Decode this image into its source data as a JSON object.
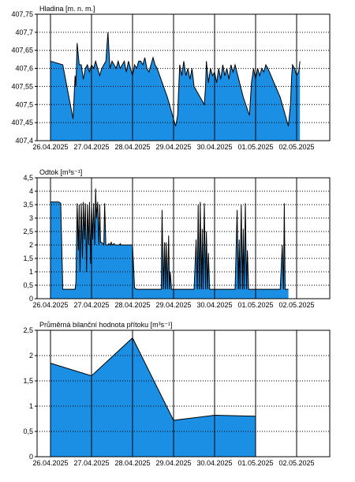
{
  "chart_data": [
    {
      "type": "area",
      "title": "Hladina [m. n. m.]",
      "x_ticks": [
        "26.04.2025",
        "27.04.2025",
        "28.04.2025",
        "29.04.2025",
        "30.04.2025",
        "01.05.2025",
        "02.05.2025"
      ],
      "y_ticks": [
        "407,4",
        "407,45",
        "407,5",
        "407,55",
        "407,6",
        "407,65",
        "407,7",
        "407,75"
      ],
      "ylim": [
        407.4,
        407.75
      ],
      "xlim": [
        0,
        7.1
      ],
      "grid": true,
      "fill_color": "#1a8fe3",
      "series": [
        {
          "x": [
            0.0,
            0.3,
            0.55,
            0.6,
            0.62,
            0.65,
            0.7,
            0.75,
            0.8,
            0.85,
            0.9,
            0.95,
            1.0,
            1.05,
            1.1,
            1.15,
            1.2,
            1.25,
            1.3,
            1.35,
            1.4,
            1.45,
            1.5,
            1.55,
            1.6,
            1.65,
            1.7,
            1.75,
            1.8,
            1.85,
            1.9,
            1.95,
            2.0,
            2.05,
            2.1,
            2.15,
            2.2,
            2.25,
            2.3,
            2.35,
            2.4,
            2.45,
            2.5,
            2.55,
            2.6,
            2.85,
            3.05,
            3.1,
            3.12,
            3.15,
            3.2,
            3.25,
            3.3,
            3.35,
            3.4,
            3.45,
            3.5,
            3.6,
            3.7,
            3.75,
            3.78,
            3.8,
            3.85,
            3.9,
            3.95,
            4.0,
            4.05,
            4.1,
            4.15,
            4.2,
            4.25,
            4.3,
            4.35,
            4.4,
            4.45,
            4.5,
            4.7,
            4.85,
            4.9,
            4.95,
            5.0,
            5.05,
            5.1,
            5.15,
            5.2,
            5.25,
            5.3,
            5.6,
            5.8,
            5.85,
            5.88,
            5.9,
            5.95,
            6.0,
            6.05,
            6.08
          ],
          "y": [
            407.62,
            407.61,
            407.46,
            407.58,
            407.55,
            407.67,
            407.61,
            407.61,
            407.57,
            407.6,
            407.61,
            407.59,
            407.61,
            407.6,
            407.62,
            407.6,
            407.58,
            407.6,
            407.61,
            407.62,
            407.7,
            407.6,
            407.62,
            407.61,
            407.6,
            407.62,
            407.6,
            407.61,
            407.62,
            407.59,
            407.62,
            407.6,
            407.58,
            407.61,
            407.6,
            407.62,
            407.62,
            407.61,
            407.63,
            407.6,
            407.59,
            407.61,
            407.63,
            407.61,
            407.6,
            407.52,
            407.44,
            407.47,
            407.53,
            407.61,
            407.58,
            407.62,
            407.58,
            407.6,
            407.57,
            407.6,
            407.55,
            407.53,
            407.51,
            407.5,
            407.55,
            407.62,
            407.56,
            407.6,
            407.58,
            407.59,
            407.56,
            407.6,
            407.57,
            407.61,
            407.58,
            407.6,
            407.57,
            407.61,
            407.59,
            407.61,
            407.52,
            407.47,
            407.56,
            407.6,
            407.57,
            407.6,
            407.58,
            407.6,
            407.59,
            407.61,
            407.6,
            407.52,
            407.44,
            407.5,
            407.58,
            407.61,
            407.6,
            407.58,
            407.59,
            407.62
          ]
        }
      ]
    },
    {
      "type": "area",
      "title": "Odtok [m³s⁻¹]",
      "x_ticks": [
        "26.04.2025",
        "27.04.2025",
        "28.04.2025",
        "29.04.2025",
        "30.04.2025",
        "01.05.2025",
        "02.05.2025"
      ],
      "y_ticks": [
        "0",
        "0,5",
        "1",
        "1,5",
        "2",
        "2,5",
        "3",
        "3,5",
        "4",
        "4,5"
      ],
      "ylim": [
        0,
        4.5
      ],
      "xlim": [
        0,
        7.1
      ],
      "grid": true,
      "fill_color": "#1a8fe3",
      "series": [
        {
          "x": [
            0.0,
            0.2,
            0.25,
            0.3,
            0.6,
            0.62,
            0.65,
            0.68,
            0.7,
            0.72,
            0.75,
            0.78,
            0.8,
            0.83,
            0.85,
            0.88,
            0.9,
            0.93,
            0.95,
            0.98,
            1.0,
            1.03,
            1.05,
            1.08,
            1.1,
            1.12,
            1.15,
            1.18,
            1.2,
            1.22,
            1.25,
            1.3,
            1.32,
            1.35,
            1.38,
            1.4,
            1.42,
            1.45,
            1.48,
            1.5,
            1.55,
            1.58,
            1.6,
            1.62,
            1.65,
            1.68,
            1.7,
            1.72,
            1.75,
            1.8,
            2.0,
            2.05,
            2.1,
            2.7,
            2.72,
            2.75,
            2.78,
            2.8,
            2.82,
            2.85,
            2.88,
            2.9,
            2.92,
            2.95,
            3.0,
            3.5,
            3.55,
            3.58,
            3.6,
            3.63,
            3.65,
            3.68,
            3.7,
            3.72,
            3.75,
            3.78,
            3.8,
            3.83,
            3.85,
            3.88,
            3.9,
            3.95,
            4.5,
            4.55,
            4.58,
            4.6,
            4.62,
            4.65,
            4.68,
            4.7,
            4.72,
            4.75,
            4.78,
            4.8,
            4.83,
            4.85,
            4.9,
            5.6,
            5.65,
            5.68,
            5.7,
            5.72,
            5.75,
            5.78,
            5.8
          ],
          "y": [
            3.6,
            3.6,
            3.55,
            0.35,
            0.35,
            0.6,
            3.55,
            1.8,
            3.5,
            1.0,
            3.55,
            1.5,
            3.6,
            2.2,
            3.55,
            1.0,
            3.5,
            2.0,
            3.6,
            1.3,
            3.5,
            2.2,
            3.55,
            2.0,
            4.1,
            3.0,
            3.6,
            2.0,
            3.5,
            2.1,
            2.1,
            2.0,
            3.55,
            2.0,
            2.0,
            2.0,
            2.05,
            2.0,
            2.1,
            2.0,
            2.05,
            2.0,
            2.0,
            2.0,
            2.0,
            2.0,
            2.05,
            2.0,
            2.0,
            2.0,
            2.0,
            0.4,
            0.35,
            0.35,
            3.3,
            0.35,
            2.1,
            0.35,
            2.1,
            0.35,
            2.35,
            0.35,
            1.0,
            0.35,
            0.35,
            0.35,
            2.2,
            0.35,
            3.5,
            0.35,
            3.6,
            0.35,
            2.6,
            0.35,
            3.55,
            0.35,
            2.5,
            0.35,
            1.7,
            0.35,
            0.35,
            0.35,
            0.35,
            3.3,
            0.35,
            2.2,
            0.35,
            3.5,
            0.35,
            2.6,
            0.35,
            3.55,
            0.35,
            1.8,
            0.35,
            0.35,
            0.35,
            0.35,
            2.0,
            0.35,
            3.55,
            0.35,
            0.35,
            0.35,
            0.35
          ]
        }
      ]
    },
    {
      "type": "area",
      "title": "Průměrná bilanční hodnota přítoku   [m³s⁻¹]",
      "x_ticks": [
        "26.04.2025",
        "27.04.2025",
        "28.04.2025",
        "29.04.2025",
        "30.04.2025",
        "01.05.2025",
        "02.05.2025"
      ],
      "y_ticks": [
        "0",
        "0,5",
        "1",
        "1,5",
        "2",
        "2,5"
      ],
      "ylim": [
        0,
        2.5
      ],
      "xlim": [
        0,
        7.1
      ],
      "grid": true,
      "fill_color": "#1a8fe3",
      "series": [
        {
          "x": [
            0.0,
            1.0,
            2.0,
            3.0,
            4.0,
            5.0
          ],
          "y": [
            1.85,
            1.6,
            2.35,
            0.72,
            0.82,
            0.8
          ]
        }
      ]
    }
  ]
}
